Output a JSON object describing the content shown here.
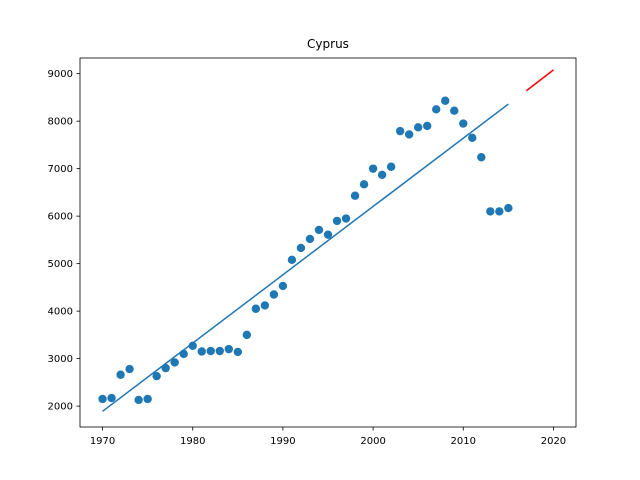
{
  "chart_data": {
    "type": "scatter",
    "title": "Cyprus",
    "xlabel": "",
    "ylabel": "",
    "xlim": [
      1967.5,
      2022.5
    ],
    "ylim": [
      1560,
      9330
    ],
    "x_ticks": [
      1970,
      1980,
      1990,
      2000,
      2010,
      2020
    ],
    "y_ticks": [
      2000,
      3000,
      4000,
      5000,
      6000,
      7000,
      8000,
      9000
    ],
    "x_tick_labels": [
      "1970",
      "1980",
      "1990",
      "2000",
      "2010",
      "2020"
    ],
    "y_tick_labels": [
      "2000",
      "3000",
      "4000",
      "5000",
      "6000",
      "7000",
      "8000",
      "9000"
    ],
    "grid": false,
    "series": [
      {
        "kind": "scatter",
        "color": "#1f77b4",
        "points": [
          [
            1970,
            2150
          ],
          [
            1971,
            2170
          ],
          [
            1972,
            2660
          ],
          [
            1973,
            2780
          ],
          [
            1974,
            2130
          ],
          [
            1975,
            2150
          ],
          [
            1976,
            2630
          ],
          [
            1977,
            2800
          ],
          [
            1978,
            2920
          ],
          [
            1979,
            3100
          ],
          [
            1980,
            3270
          ],
          [
            1981,
            3150
          ],
          [
            1982,
            3160
          ],
          [
            1983,
            3160
          ],
          [
            1984,
            3200
          ],
          [
            1985,
            3140
          ],
          [
            1986,
            3500
          ],
          [
            1987,
            4050
          ],
          [
            1988,
            4120
          ],
          [
            1989,
            4350
          ],
          [
            1990,
            4530
          ],
          [
            1991,
            5080
          ],
          [
            1992,
            5330
          ],
          [
            1993,
            5520
          ],
          [
            1994,
            5710
          ],
          [
            1995,
            5610
          ],
          [
            1996,
            5900
          ],
          [
            1997,
            5950
          ],
          [
            1998,
            6430
          ],
          [
            1999,
            6670
          ],
          [
            2000,
            7000
          ],
          [
            2001,
            6870
          ],
          [
            2002,
            7040
          ],
          [
            2003,
            7790
          ],
          [
            2004,
            7720
          ],
          [
            2005,
            7870
          ],
          [
            2006,
            7900
          ],
          [
            2007,
            8250
          ],
          [
            2008,
            8430
          ],
          [
            2009,
            8220
          ],
          [
            2010,
            7950
          ],
          [
            2011,
            7650
          ],
          [
            2012,
            7240
          ],
          [
            2013,
            6100
          ],
          [
            2014,
            6100
          ],
          [
            2015,
            6170
          ]
        ]
      },
      {
        "kind": "line",
        "color": "#1f77b4",
        "points": [
          [
            1970,
            1890
          ],
          [
            2015,
            8360
          ]
        ]
      },
      {
        "kind": "line",
        "color": "#ff0000",
        "points": [
          [
            2017,
            8640
          ],
          [
            2020,
            9080
          ]
        ]
      }
    ]
  }
}
